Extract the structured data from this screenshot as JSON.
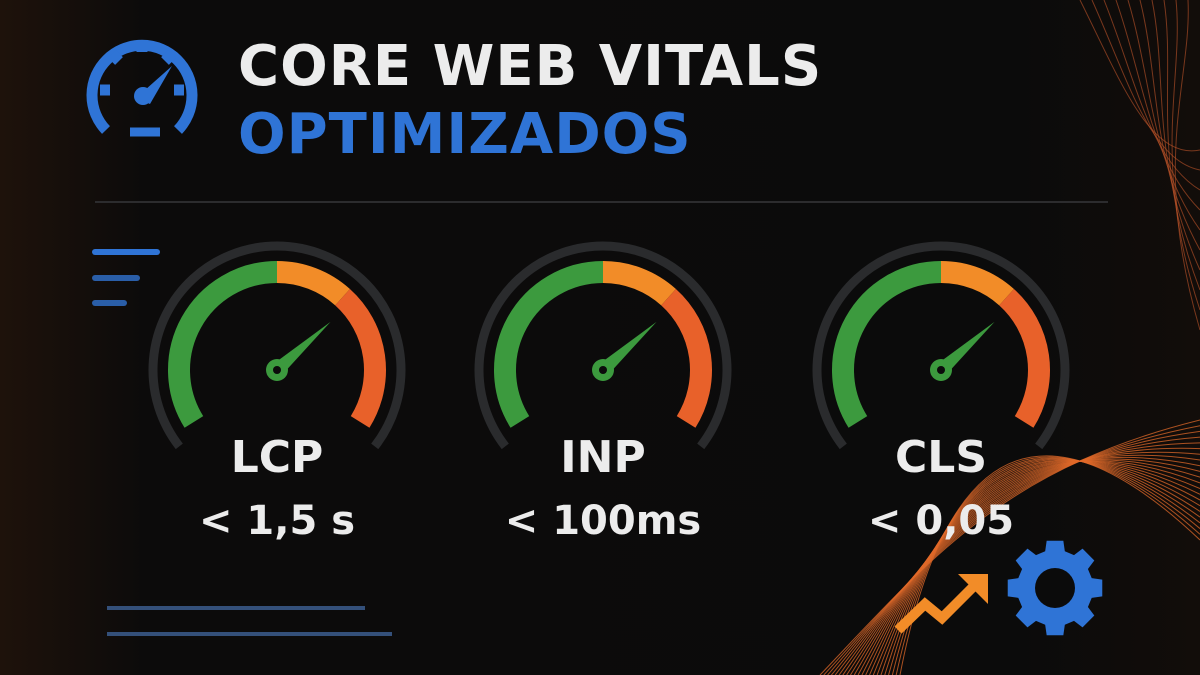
{
  "title": {
    "line1": "CORE WEB VITALS",
    "line2": "OPTIMIZADOS"
  },
  "colors": {
    "accent_blue": "#2f74d6",
    "green": "#3c9a3e",
    "orange": "#f28c28",
    "red_orange": "#e8612a",
    "background": "#0b0b0b",
    "text": "#ececec"
  },
  "gauges": [
    {
      "metric": "LCP",
      "value": "< 1,5 s"
    },
    {
      "metric": "INP",
      "value": "< 100ms"
    },
    {
      "metric": "CLS",
      "value": "< 0,05"
    }
  ],
  "icons": [
    "speedometer-icon",
    "menu-lines-icon",
    "trend-up-arrow-icon",
    "gear-icon"
  ]
}
